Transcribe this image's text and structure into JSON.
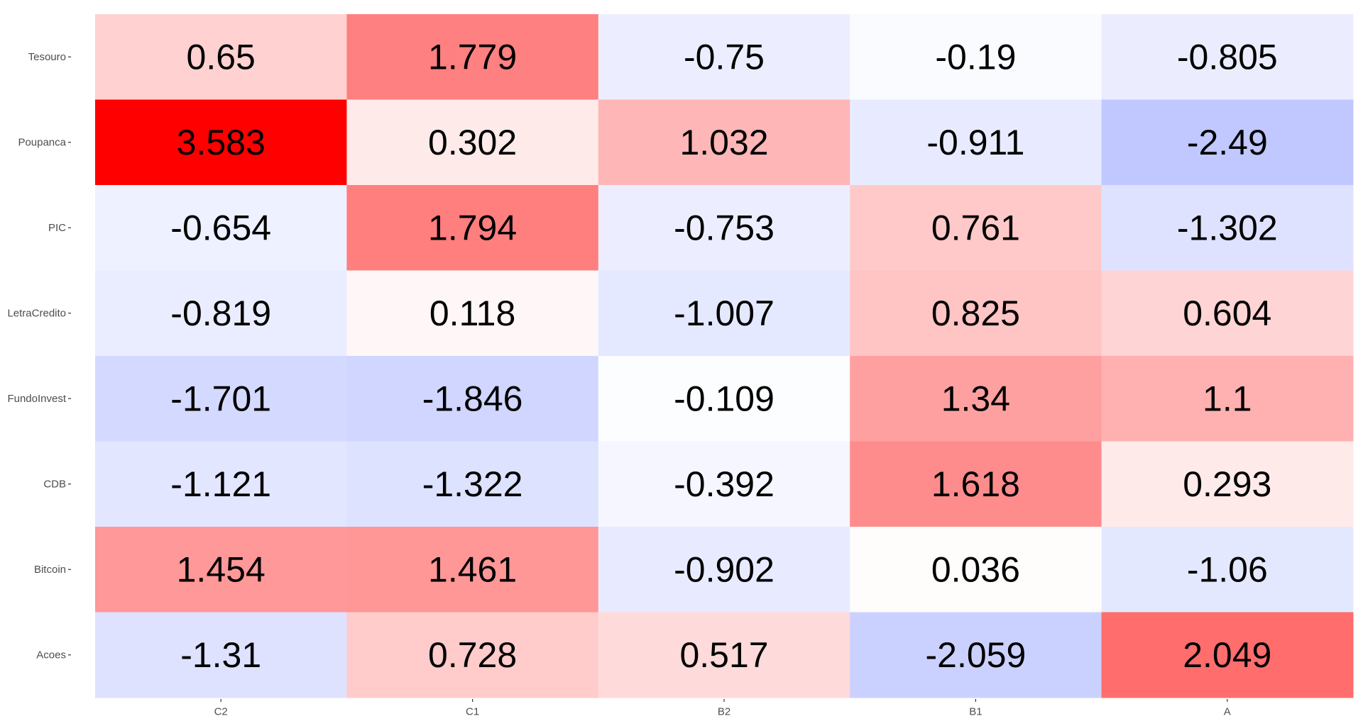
{
  "chart_data": {
    "type": "heatmap",
    "title": "",
    "xlabel": "",
    "ylabel": "",
    "grid": false,
    "legend": "none",
    "x_categories": [
      "C2",
      "C1",
      "B2",
      "B1",
      "A"
    ],
    "y_categories": [
      "Tesouro",
      "Poupanca",
      "PIC",
      "LetraCredito",
      "FundoInvest",
      "CDB",
      "Bitcoin",
      "Acoes"
    ],
    "values": [
      [
        0.65,
        1.779,
        -0.75,
        -0.19,
        -0.805
      ],
      [
        3.583,
        0.302,
        1.032,
        -0.911,
        -2.49
      ],
      [
        -0.654,
        1.794,
        -0.753,
        0.761,
        -1.302
      ],
      [
        -0.819,
        0.118,
        -1.007,
        0.825,
        0.604
      ],
      [
        -1.701,
        -1.846,
        -0.109,
        1.34,
        1.1
      ],
      [
        -1.121,
        -1.322,
        -0.392,
        1.618,
        0.293
      ],
      [
        1.454,
        1.461,
        -0.902,
        0.036,
        -1.06
      ],
      [
        -1.31,
        0.728,
        0.517,
        -2.059,
        2.049
      ]
    ],
    "labels": [
      [
        "0.65",
        "1.779",
        "-0.75",
        "-0.19",
        "-0.805"
      ],
      [
        "3.583",
        "0.302",
        "1.032",
        "-0.911",
        "-2.49"
      ],
      [
        "-0.654",
        "1.794",
        "-0.753",
        "0.761",
        "-1.302"
      ],
      [
        "-0.819",
        "0.118",
        "-1.007",
        "0.825",
        "0.604"
      ],
      [
        "-1.701",
        "-1.846",
        "-0.109",
        "1.34",
        "1.1"
      ],
      [
        "-1.121",
        "-1.322",
        "-0.392",
        "1.618",
        "0.293"
      ],
      [
        "1.454",
        "1.461",
        "-0.902",
        "0.036",
        "-1.06"
      ],
      [
        "-1.31",
        "0.728",
        "0.517",
        "-2.059",
        "2.049"
      ]
    ],
    "color_scale": {
      "low": "#7b8cff",
      "mid": "#ffffff",
      "high": "#ff0000",
      "min": -5.2,
      "max": 3.583
    }
  }
}
